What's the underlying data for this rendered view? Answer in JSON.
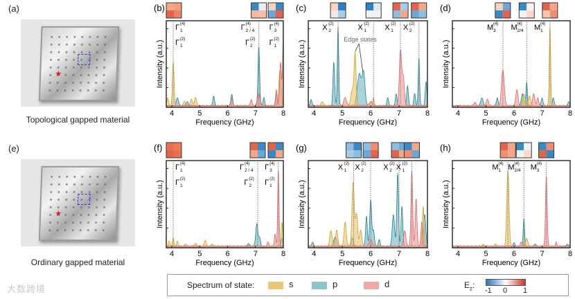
{
  "panels": {
    "a": {
      "label": "(a)",
      "caption": "Topological gapped material"
    },
    "e": {
      "label": "(e)",
      "caption": "Ordinary gapped material"
    }
  },
  "legend": {
    "title": "Spectrum of state:",
    "items": [
      {
        "label": "s",
        "color": "#e8c878"
      },
      {
        "label": "p",
        "color": "#8ec3cc"
      },
      {
        "label": "d",
        "color": "#f0a8a8"
      }
    ],
    "colorbar_label_base": "E",
    "colorbar_label_sub": "z",
    "colorbar_label_colon": ":",
    "colorbar_ticks": [
      "-1",
      "0",
      "1"
    ]
  },
  "watermark": "大数跨境",
  "colors": {
    "s": {
      "fill": "#e8c36a",
      "stroke": "#c9a030"
    },
    "p": {
      "fill": "#6fb6c2",
      "stroke": "#24808e"
    },
    "d": {
      "fill": "#ef9696",
      "stroke": "#d86868"
    }
  },
  "chart_data": [
    {
      "type": "area",
      "panel": "(b)",
      "xlabel": "Frequency (GHz)",
      "ylabel": "Intensity (a.u.)",
      "xlim": [
        3.8,
        8.0
      ],
      "ylim": [
        0,
        1.1
      ],
      "xticks": [
        "4",
        "5",
        "6",
        "7",
        "8"
      ],
      "grid": false,
      "markers": [
        {
          "freq": 4.05,
          "labels": [
            {
              "base": "Γ",
              "sup": "(4)",
              "sub": "1"
            },
            {
              "base": "Γ",
              "sup": "(2)",
              "sub": "1"
            }
          ],
          "pattern": [
            "#f2a888",
            "#f0a080",
            "#e0654a",
            "#e8836a"
          ]
        },
        {
          "freq": 7.12,
          "labels": [
            {
              "base": "Γ",
              "sup": "(4)",
              "sub": "2 / 4"
            },
            {
              "base": "Γ",
              "sup": "(2)",
              "sub": "2"
            }
          ],
          "pattern": [
            "#3a88c4",
            "#e6eff6",
            "#f4b89e",
            "#f4c0a6"
          ]
        },
        {
          "freq": 7.98,
          "labels": [
            {
              "base": "Γ",
              "sup": "(4)",
              "sub": "3"
            },
            {
              "base": "Γ",
              "sup": "(2)",
              "sub": "1"
            }
          ],
          "pattern": [
            "#fad2c2",
            "#3a88c4",
            "#6aa6d6",
            "#e0654a"
          ]
        }
      ],
      "series": {
        "s": [
          [
            3.85,
            0.1,
            0.03
          ],
          [
            4.05,
            0.55,
            0.03
          ],
          [
            4.45,
            0.05,
            0.04
          ],
          [
            4.7,
            0.08,
            0.03
          ],
          [
            4.85,
            0.1,
            0.04
          ],
          [
            7.88,
            0.45,
            0.04
          ]
        ],
        "p": [
          [
            4.2,
            0.1,
            0.04
          ],
          [
            4.55,
            0.05,
            0.04
          ],
          [
            5.5,
            0.12,
            0.03
          ],
          [
            6.15,
            0.15,
            0.03
          ],
          [
            7.12,
            0.75,
            0.03
          ],
          [
            7.3,
            0.1,
            0.03
          ],
          [
            7.75,
            0.15,
            0.03
          ]
        ],
        "d": [
          [
            6.15,
            0.1,
            0.03
          ],
          [
            6.85,
            0.08,
            0.03
          ],
          [
            7.12,
            0.15,
            0.05
          ],
          [
            7.75,
            0.2,
            0.03
          ],
          [
            7.9,
            0.55,
            0.03
          ],
          [
            8.0,
            0.85,
            0.03
          ]
        ]
      }
    },
    {
      "type": "area",
      "panel": "(c)",
      "xlabel": "Frequency (GHz)",
      "ylabel": "Intensity (a.u.)",
      "xlim": [
        3.8,
        8.0
      ],
      "ylim": [
        0,
        1.1
      ],
      "xticks": [
        "4",
        "5",
        "6",
        "7",
        "8"
      ],
      "grid": false,
      "annotation": {
        "text": "Edge states",
        "targets": [
          5.45,
          5.72
        ]
      },
      "markers": [
        {
          "freq": 4.85,
          "labels": [
            {
              "base": "X",
              "sup": "(2)",
              "sub": "2"
            }
          ],
          "pattern": [
            "#fad2c2",
            "#2f7fc0",
            "#f4e8e2",
            "#a8cce6"
          ]
        },
        {
          "freq": 6.1,
          "labels": [
            {
              "base": "X",
              "sup": "(2)",
              "sub": "1"
            }
          ],
          "pattern": [
            "#2f7fc0",
            "#dbe9f3",
            "#f2f2f2",
            "#eef3f7"
          ]
        },
        {
          "freq": 7.05,
          "labels": [
            {
              "base": "X",
              "sup": "(2)",
              "sub": "1"
            }
          ],
          "pattern": [
            "#e0654a",
            "#a8cce6",
            "#8ebedf",
            "#f2a888"
          ]
        },
        {
          "freq": 7.7,
          "labels": [
            {
              "base": "X",
              "sup": "(2)",
              "sub": "2"
            }
          ],
          "pattern": [
            "#e0654a",
            "#f2a888",
            "#6aa6d6",
            "#8ebedf"
          ]
        }
      ],
      "series": {
        "s": [
          [
            4.3,
            0.05,
            0.04
          ],
          [
            5.35,
            0.2,
            0.05
          ],
          [
            5.45,
            0.65,
            0.035
          ],
          [
            6.1,
            0.1,
            0.02
          ],
          [
            6.0,
            0.05,
            0.05
          ]
        ],
        "p": [
          [
            3.9,
            0.08,
            0.03
          ],
          [
            4.7,
            0.55,
            0.03
          ],
          [
            4.85,
            1.0,
            0.025
          ],
          [
            5.6,
            0.4,
            0.07
          ],
          [
            5.75,
            0.4,
            0.05
          ],
          [
            6.6,
            0.1,
            0.03
          ],
          [
            6.9,
            0.15,
            0.03
          ],
          [
            7.3,
            0.25,
            0.03
          ],
          [
            7.55,
            0.15,
            0.03
          ],
          [
            7.7,
            0.6,
            0.025
          ],
          [
            7.95,
            0.3,
            0.03
          ]
        ],
        "d": [
          [
            5.1,
            0.1,
            0.05
          ],
          [
            6.0,
            0.05,
            0.05
          ],
          [
            7.05,
            0.7,
            0.04
          ],
          [
            7.15,
            0.35,
            0.04
          ]
        ]
      }
    },
    {
      "type": "area",
      "panel": "(d)",
      "xlabel": "Frequency (GHz)",
      "ylabel": "Intensity (a.u.)",
      "xlim": [
        3.8,
        8.0
      ],
      "ylim": [
        0,
        1.1
      ],
      "xticks": [
        "4",
        "5",
        "6",
        "7",
        "8"
      ],
      "grid": false,
      "markers": [
        {
          "freq": 5.6,
          "labels": [
            {
              "base": "M",
              "sup": "(4)",
              "sub": "3"
            }
          ],
          "pattern": [
            "#fad2c2",
            "#6aa6d6",
            "#3a88c4",
            "#e0654a"
          ]
        },
        {
          "freq": 6.45,
          "labels": [
            {
              "base": "M",
              "sup": "(4)",
              "sub": "2/4"
            }
          ],
          "pattern": [
            "#3a88c4",
            "#f2f2f2",
            "#f2f2f2",
            "#fad8cc"
          ]
        },
        {
          "freq": 7.28,
          "labels": [
            {
              "base": "M",
              "sup": "(4)",
              "sub": "1"
            }
          ],
          "pattern": [
            "#e0654a",
            "#f2a888",
            "#f8c4ae",
            "#f08c70"
          ]
        }
      ],
      "series": {
        "s": [
          [
            6.35,
            0.15,
            0.04
          ],
          [
            6.55,
            0.12,
            0.04
          ],
          [
            7.28,
            1.0,
            0.025
          ]
        ],
        "p": [
          [
            4.85,
            0.1,
            0.04
          ],
          [
            5.4,
            0.1,
            0.03
          ],
          [
            6.3,
            0.15,
            0.04
          ],
          [
            6.45,
            0.3,
            0.025
          ],
          [
            7.0,
            0.1,
            0.03
          ],
          [
            7.4,
            0.1,
            0.03
          ],
          [
            7.95,
            0.05,
            0.03
          ]
        ],
        "d": [
          [
            4.6,
            0.04,
            0.04
          ],
          [
            5.05,
            0.08,
            0.04
          ],
          [
            5.6,
            0.45,
            0.05
          ],
          [
            6.1,
            0.2,
            0.04
          ],
          [
            6.7,
            0.15,
            0.04
          ],
          [
            6.85,
            0.1,
            0.03
          ]
        ]
      }
    },
    {
      "type": "area",
      "panel": "(f)",
      "xlabel": "Frequency (GHz)",
      "ylabel": "Intensity (a.u.)",
      "xlim": [
        3.8,
        8.0
      ],
      "ylim": [
        0,
        1.1
      ],
      "xticks": [
        "4",
        "5",
        "6",
        "7",
        "8"
      ],
      "grid": false,
      "markers": [
        {
          "freq": 4.05,
          "labels": [
            {
              "base": "Γ",
              "sup": "(4)",
              "sub": "1"
            },
            {
              "base": "Γ",
              "sup": "(2)",
              "sub": "1"
            }
          ],
          "pattern": [
            "#e6704f",
            "#ea7c5c",
            "#e0654a",
            "#e6704f"
          ]
        },
        {
          "freq": 7.08,
          "labels": [
            {
              "base": "Γ",
              "sup": "(4)",
              "sub": "2 / 4"
            },
            {
              "base": "Γ",
              "sup": "(2)",
              "sub": "2"
            }
          ],
          "pattern": [
            "#e0654a",
            "#3a88c4",
            "#f2a888",
            "#6aa6d6"
          ]
        },
        {
          "freq": 7.82,
          "labels": [
            {
              "base": "Γ",
              "sup": "(4)",
              "sub": "3"
            },
            {
              "base": "Γ",
              "sup": "(2)",
              "sub": "1"
            }
          ],
          "pattern": [
            "#e0654a",
            "#3a88c4",
            "#3a88c4",
            "#f2a888"
          ]
        }
      ],
      "series": {
        "s": [
          [
            3.9,
            0.06,
            0.03
          ],
          [
            4.05,
            0.1,
            0.025
          ],
          [
            4.2,
            0.06,
            0.03
          ],
          [
            4.5,
            0.03,
            0.03
          ],
          [
            4.85,
            0.03,
            0.05
          ],
          [
            5.2,
            0.08,
            0.03
          ],
          [
            5.45,
            0.03,
            0.03
          ],
          [
            7.95,
            0.3,
            0.03
          ]
        ],
        "p": [
          [
            6.75,
            0.03,
            0.04
          ],
          [
            7.05,
            0.28,
            0.04
          ],
          [
            7.15,
            0.1,
            0.03
          ],
          [
            7.95,
            0.1,
            0.03
          ]
        ],
        "d": [
          [
            7.45,
            0.05,
            0.03
          ],
          [
            7.7,
            0.15,
            0.025
          ],
          [
            7.82,
            0.95,
            0.025
          ]
        ]
      }
    },
    {
      "type": "area",
      "panel": "(g)",
      "xlabel": "Frequency (GHz)",
      "ylabel": "Intensity (a.u.)",
      "xlim": [
        3.8,
        8.0
      ],
      "ylim": [
        0,
        1.1
      ],
      "xticks": [
        "4",
        "5",
        "6",
        "7",
        "8"
      ],
      "grid": false,
      "markers": [
        {
          "freq": 5.4,
          "labels": [
            {
              "base": "X",
              "sup": "(2)",
              "sub": "1"
            }
          ],
          "pattern": [
            "#8ebedf",
            "#3a88c4",
            "#a8cce6",
            "#8ebedf"
          ]
        },
        {
          "freq": 6.0,
          "labels": [
            {
              "base": "X",
              "sup": "(2)",
              "sub": "2"
            }
          ],
          "pattern": [
            "#8ebedf",
            "#f08c70",
            "#6aa6d6",
            "#e0654a"
          ]
        },
        {
          "freq": 7.0,
          "labels": [
            {
              "base": "X",
              "sup": "(2)",
              "sub": "2"
            }
          ],
          "pattern": [
            "#8ebedf",
            "#6aa6d6",
            "#e0654a",
            "#f2a888"
          ]
        },
        {
          "freq": 7.45,
          "labels": [
            {
              "base": "X",
              "sup": "(2)",
              "sub": "1"
            }
          ],
          "pattern": [
            "#3a88c4",
            "#f2a888",
            "#f08c70",
            "#6aa6d6"
          ]
        }
      ],
      "series": {
        "s": [
          [
            4.6,
            0.2,
            0.04
          ],
          [
            4.8,
            0.2,
            0.04
          ],
          [
            5.1,
            0.3,
            0.04
          ],
          [
            5.38,
            0.8,
            0.04
          ],
          [
            5.5,
            0.4,
            0.04
          ],
          [
            5.65,
            0.2,
            0.04
          ],
          [
            7.85,
            0.5,
            0.03
          ]
        ],
        "p": [
          [
            3.95,
            0.05,
            0.03
          ],
          [
            4.75,
            0.12,
            0.05
          ],
          [
            5.35,
            0.1,
            0.04
          ],
          [
            5.85,
            0.38,
            0.03
          ],
          [
            6.0,
            0.58,
            0.035
          ],
          [
            6.1,
            0.2,
            0.03
          ],
          [
            6.3,
            0.08,
            0.03
          ],
          [
            6.8,
            0.4,
            0.04
          ],
          [
            6.95,
            0.92,
            0.03
          ],
          [
            7.1,
            0.5,
            0.03
          ],
          [
            7.9,
            0.4,
            0.04
          ]
        ],
        "d": [
          [
            6.0,
            0.08,
            0.05
          ],
          [
            7.2,
            0.2,
            0.04
          ],
          [
            7.45,
            0.95,
            0.03
          ],
          [
            7.6,
            0.6,
            0.03
          ],
          [
            7.8,
            0.3,
            0.03
          ]
        ]
      }
    },
    {
      "type": "area",
      "panel": "(h)",
      "xlabel": "Frequency (GHz)",
      "ylabel": "Intensity (a.u.)",
      "xlim": [
        3.8,
        8.0
      ],
      "ylim": [
        0,
        1.1
      ],
      "xticks": [
        "4",
        "5",
        "6",
        "7",
        "8"
      ],
      "grid": false,
      "markers": [
        {
          "freq": 5.78,
          "labels": [
            {
              "base": "M",
              "sup": "(4)",
              "sub": "1"
            }
          ],
          "pattern": [
            "#e0654a",
            "#f2a888",
            "#f08c70",
            "#f2a888"
          ]
        },
        {
          "freq": 6.35,
          "labels": [
            {
              "base": "M",
              "sup": "(4)",
              "sub": "2/4"
            }
          ],
          "pattern": [
            "#3a88c4",
            "#f2f2f2",
            "#eef3f7",
            "#fad8cc"
          ]
        },
        {
          "freq": 7.15,
          "labels": [
            {
              "base": "M",
              "sup": "(4)",
              "sub": "3"
            }
          ],
          "pattern": [
            "#3a88c4",
            "#f08c70",
            "#e0654a",
            "#3a88c4"
          ]
        }
      ],
      "series": {
        "s": [
          [
            4.9,
            0.02,
            0.04
          ],
          [
            5.35,
            0.03,
            0.03
          ],
          [
            5.78,
            0.95,
            0.04
          ],
          [
            6.45,
            0.1,
            0.04
          ]
        ],
        "p": [
          [
            6.0,
            0.04,
            0.03
          ],
          [
            6.35,
            0.35,
            0.025
          ],
          [
            6.75,
            0.03,
            0.03
          ],
          [
            7.9,
            0.02,
            0.04
          ]
        ],
        "d": [
          [
            6.25,
            0.05,
            0.03
          ],
          [
            7.15,
            0.88,
            0.03
          ],
          [
            7.5,
            0.05,
            0.02
          ]
        ]
      }
    }
  ]
}
